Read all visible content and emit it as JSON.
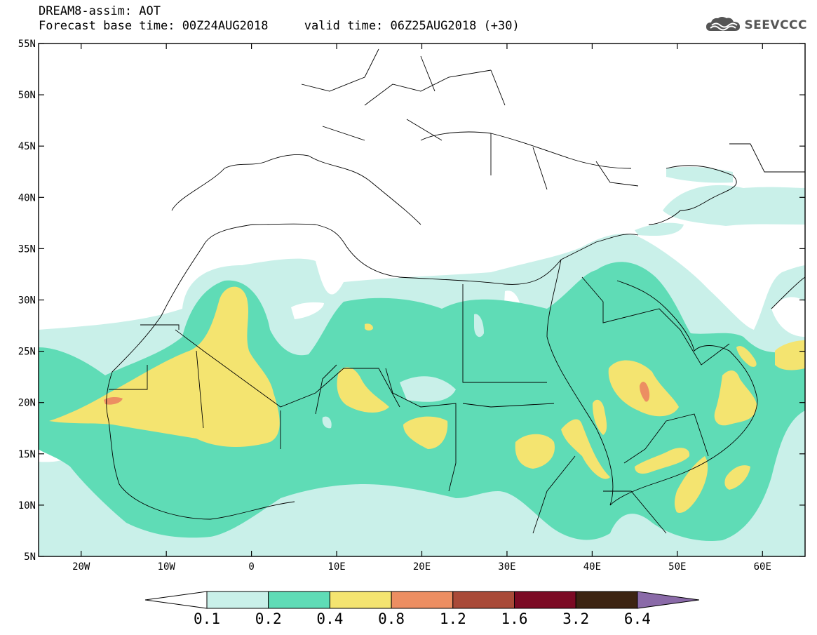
{
  "header": {
    "title": "DREAM8-assim: AOT",
    "forecast_label": "Forecast base time: 00Z24AUG2018",
    "valid_label": "valid time: 06Z25AUG2018 (+30)",
    "brand": "SEEVCCC",
    "brand_icon": "cloud-icon"
  },
  "map": {
    "variable": "AOT",
    "lon_range": [
      -25,
      65
    ],
    "lat_range": [
      5,
      55
    ],
    "lat_ticks": [
      {
        "value": 55,
        "label": "55N"
      },
      {
        "value": 50,
        "label": "50N"
      },
      {
        "value": 45,
        "label": "45N"
      },
      {
        "value": 40,
        "label": "40N"
      },
      {
        "value": 35,
        "label": "35N"
      },
      {
        "value": 30,
        "label": "30N"
      },
      {
        "value": 25,
        "label": "25N"
      },
      {
        "value": 20,
        "label": "20N"
      },
      {
        "value": 15,
        "label": "15N"
      },
      {
        "value": 10,
        "label": "10N"
      },
      {
        "value": 5,
        "label": "5N"
      }
    ],
    "lon_ticks": [
      {
        "value": -20,
        "label": "20W"
      },
      {
        "value": -10,
        "label": "10W"
      },
      {
        "value": 0,
        "label": "0"
      },
      {
        "value": 10,
        "label": "10E"
      },
      {
        "value": 20,
        "label": "20E"
      },
      {
        "value": 30,
        "label": "30E"
      },
      {
        "value": 40,
        "label": "40E"
      },
      {
        "value": 50,
        "label": "50E"
      },
      {
        "value": 60,
        "label": "60E"
      }
    ]
  },
  "colorbar": {
    "levels": [
      "0.1",
      "0.2",
      "0.4",
      "0.8",
      "1.2",
      "1.6",
      "3.2",
      "6.4"
    ],
    "colors": [
      "#ffffff",
      "#c9f0e9",
      "#5fdcb6",
      "#f4e470",
      "#ec8e62",
      "#a94a38",
      "#7b0a24",
      "#3c2412",
      "#8a6aa8"
    ]
  }
}
